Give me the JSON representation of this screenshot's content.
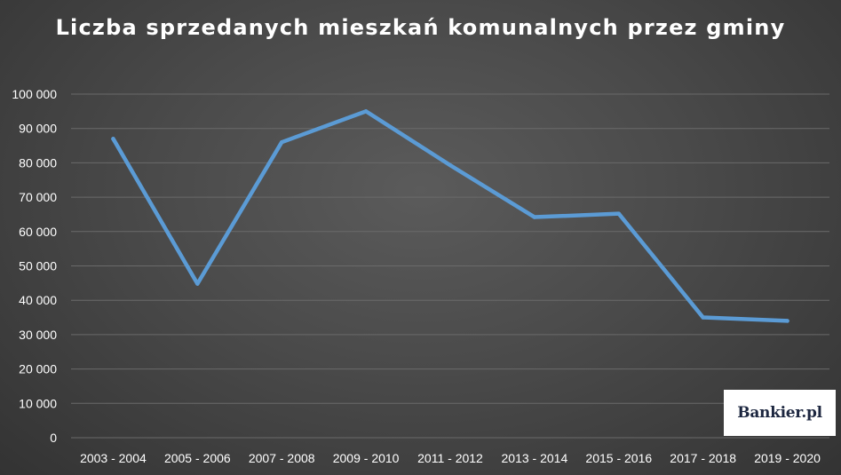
{
  "chart_data": {
    "type": "line",
    "title": "Liczba sprzedanych mieszkań komunalnych przez gminy",
    "categories": [
      "2003 - 2004",
      "2005 - 2006",
      "2007 - 2008",
      "2009 - 2010",
      "2011 - 2012",
      "2013 - 2014",
      "2015 - 2016",
      "2017 - 2018",
      "2019 - 2020"
    ],
    "series": [
      {
        "values": [
          87000,
          44800,
          86000,
          95000,
          79300,
          64200,
          65200,
          35000,
          34000
        ]
      }
    ],
    "ylim": [
      0,
      100000
    ],
    "yticks": [
      0,
      10000,
      20000,
      30000,
      40000,
      50000,
      60000,
      70000,
      80000,
      90000,
      100000
    ],
    "ytick_labels": [
      "0",
      "10 000",
      "20 000",
      "30 000",
      "40 000",
      "50 000",
      "60 000",
      "70 000",
      "80 000",
      "90 000",
      "100 000"
    ],
    "grid": true,
    "legend": "none",
    "line_color": "#5b9bd5",
    "background_color": "#4a4a4a"
  },
  "logo": {
    "text": "Bankier.pl"
  }
}
